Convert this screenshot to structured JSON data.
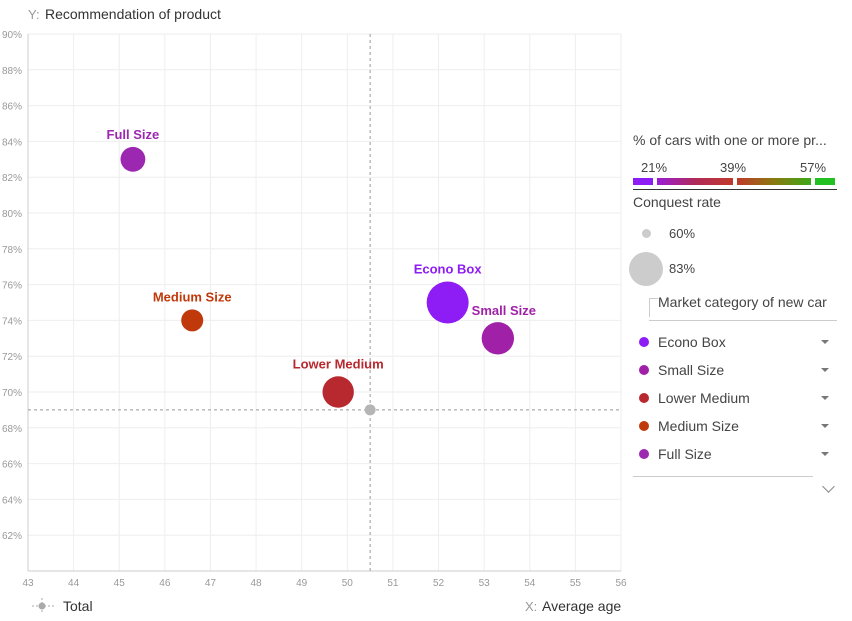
{
  "chart_data": {
    "type": "scatter",
    "y_axis": {
      "prefix": "Y:",
      "title": "Recommendation of product",
      "min": 60,
      "max": 90,
      "step": 2,
      "tick_labels": [
        "62%",
        "64%",
        "66%",
        "68%",
        "70%",
        "72%",
        "74%",
        "76%",
        "78%",
        "80%",
        "82%",
        "84%",
        "86%",
        "88%",
        "90%"
      ]
    },
    "x_axis": {
      "prefix": "X:",
      "title": "Average age",
      "min": 43,
      "max": 56,
      "step": 1,
      "tick_labels": [
        "43",
        "44",
        "45",
        "46",
        "47",
        "48",
        "49",
        "50",
        "51",
        "52",
        "53",
        "54",
        "55",
        "56"
      ]
    },
    "grid": true,
    "reference": {
      "name": "Total",
      "x": 50.5,
      "y": 69
    },
    "points": [
      {
        "name": "Full Size",
        "x": 45.3,
        "y": 83,
        "color": "#9c27b0",
        "conquest": 0.65
      },
      {
        "name": "Medium Size",
        "x": 46.6,
        "y": 74,
        "color": "#c0390b",
        "conquest": 0.62
      },
      {
        "name": "Lower Medium",
        "x": 49.8,
        "y": 70,
        "color": "#b8282f",
        "conquest": 0.72
      },
      {
        "name": "Econo Box",
        "x": 52.2,
        "y": 75,
        "color": "#8e1cf5",
        "conquest": 0.83
      },
      {
        "name": "Small Size",
        "x": 53.3,
        "y": 73,
        "color": "#a020a8",
        "conquest": 0.73
      }
    ]
  },
  "legend": {
    "color_title": "% of cars with one or more pr...",
    "color_ticks": [
      "21%",
      "39%",
      "57%"
    ],
    "size_title": "Conquest rate",
    "size_values": [
      "60%",
      "83%"
    ],
    "category_title": "Market category of new car",
    "categories": [
      {
        "label": "Econo Box",
        "color": "#8e1cf5"
      },
      {
        "label": "Small Size",
        "color": "#a020a8"
      },
      {
        "label": "Lower Medium",
        "color": "#b8282f"
      },
      {
        "label": "Medium Size",
        "color": "#c0390b"
      },
      {
        "label": "Full Size",
        "color": "#9c27b0"
      }
    ],
    "total_label": "Total"
  }
}
